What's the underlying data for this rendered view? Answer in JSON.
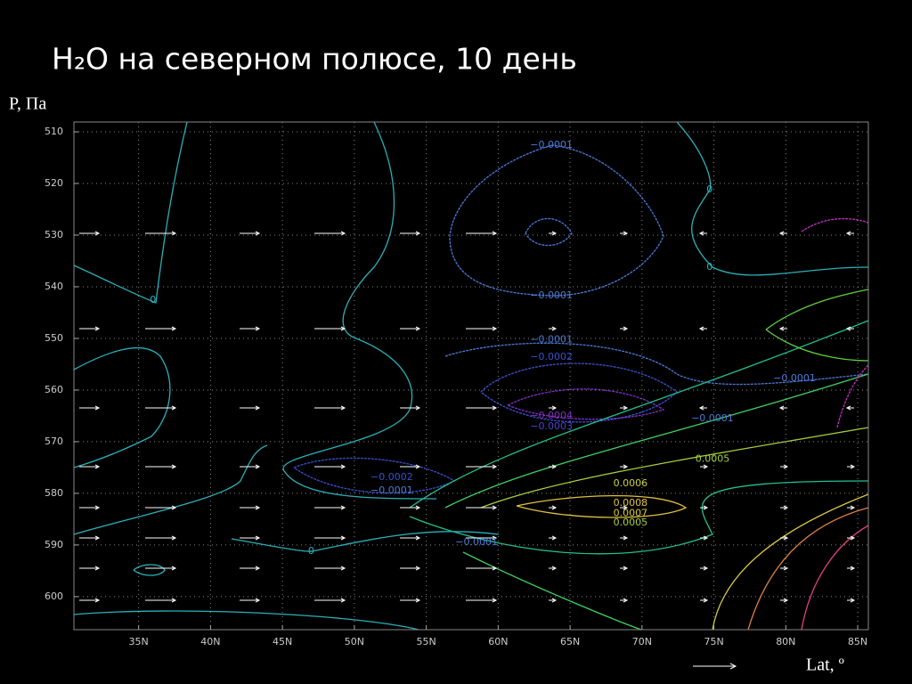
{
  "chart_data": {
    "type": "contour",
    "title": "H₂O на северном полюсе, 10 день",
    "ylabel": "P, Па",
    "xlabel": "Lat, º",
    "xlim": [
      30.5,
      85.74
    ],
    "ylim": [
      508.1,
      606.4
    ],
    "y_inverted": true,
    "grid": true,
    "xticks": [
      {
        "value": 35,
        "label": "35N"
      },
      {
        "value": 40,
        "label": "40N"
      },
      {
        "value": 45,
        "label": "45N"
      },
      {
        "value": 50,
        "label": "50N"
      },
      {
        "value": 55,
        "label": "55N"
      },
      {
        "value": 60,
        "label": "60N"
      },
      {
        "value": 65,
        "label": "65N"
      },
      {
        "value": 70,
        "label": "70N"
      },
      {
        "value": 75,
        "label": "75N"
      },
      {
        "value": 80,
        "label": "80N"
      },
      {
        "value": 85,
        "label": "85N"
      }
    ],
    "yticks": [
      510,
      520,
      530,
      540,
      550,
      560,
      570,
      580,
      590,
      600
    ],
    "contour_labels": [
      {
        "lat": 63.7,
        "p": 512.6,
        "label": "−0.0001",
        "color": "#4a7ad8"
      },
      {
        "lat": 74.7,
        "p": 521.2,
        "label": "0",
        "color": "#2ab0b8"
      },
      {
        "lat": 74.7,
        "p": 536.2,
        "label": "0",
        "color": "#2ab0b8"
      },
      {
        "lat": 36.0,
        "p": 542.6,
        "label": "0",
        "color": "#2ab0b8"
      },
      {
        "lat": 63.7,
        "p": 541.7,
        "label": "−0.0001",
        "color": "#4a7ad8"
      },
      {
        "lat": 63.7,
        "p": 550.3,
        "label": "−0.0001",
        "color": "#4a7ad8"
      },
      {
        "lat": 63.7,
        "p": 553.6,
        "label": "−0.0002",
        "color": "#3a50d0"
      },
      {
        "lat": 80.6,
        "p": 557.8,
        "label": "−0.0001",
        "color": "#4a7ad8"
      },
      {
        "lat": 63.7,
        "p": 565.0,
        "label": "−0.0004",
        "color": "#8030c8"
      },
      {
        "lat": 63.7,
        "p": 567.1,
        "label": "−0.0003",
        "color": "#5040d0"
      },
      {
        "lat": 74.9,
        "p": 565.5,
        "label": "−0.0001",
        "color": "#4a7ad8"
      },
      {
        "lat": 74.9,
        "p": 573.4,
        "label": "0.0005",
        "color": "#a8d040"
      },
      {
        "lat": 52.6,
        "p": 576.9,
        "label": "−0.0002",
        "color": "#3a50d0"
      },
      {
        "lat": 52.6,
        "p": 579.5,
        "label": "−0.0001",
        "color": "#4a7ad8"
      },
      {
        "lat": 69.2,
        "p": 578.1,
        "label": "0.0006",
        "color": "#c8d040"
      },
      {
        "lat": 69.2,
        "p": 581.9,
        "label": "0.0008",
        "color": "#e0c040"
      },
      {
        "lat": 69.2,
        "p": 583.9,
        "label": "0.0007",
        "color": "#d8c840"
      },
      {
        "lat": 69.2,
        "p": 585.7,
        "label": "0.0005",
        "color": "#a8d040"
      },
      {
        "lat": 58.5,
        "p": 589.5,
        "label": "−0.0001",
        "color": "#4a7ad8"
      },
      {
        "lat": 47.0,
        "p": 591.2,
        "label": "0",
        "color": "#2ab0b8"
      }
    ]
  }
}
